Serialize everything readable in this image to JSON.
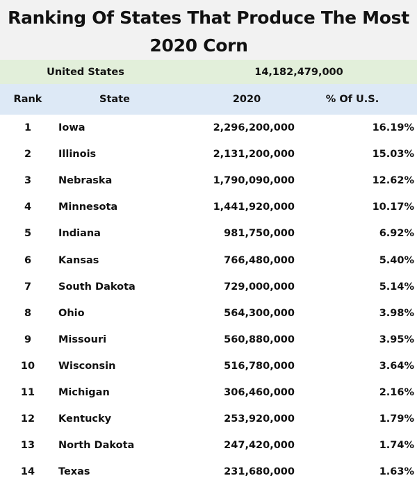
{
  "title": {
    "line1": "Ranking Of States That Produce The Most",
    "line2": "2020 Corn"
  },
  "summary": {
    "label": "United States",
    "total": "14,182,479,000"
  },
  "columns": [
    "Rank",
    "State",
    "2020",
    "% Of U.S."
  ],
  "rows": [
    {
      "rank": "1",
      "state": "Iowa",
      "value": "2,296,200,000",
      "pct": "16.19%"
    },
    {
      "rank": "2",
      "state": "Illinois",
      "value": "2,131,200,000",
      "pct": "15.03%"
    },
    {
      "rank": "3",
      "state": "Nebraska",
      "value": "1,790,090,000",
      "pct": "12.62%"
    },
    {
      "rank": "4",
      "state": "Minnesota",
      "value": "1,441,920,000",
      "pct": "10.17%"
    },
    {
      "rank": "5",
      "state": "Indiana",
      "value": "981,750,000",
      "pct": "6.92%"
    },
    {
      "rank": "6",
      "state": "Kansas",
      "value": "766,480,000",
      "pct": "5.40%"
    },
    {
      "rank": "7",
      "state": "South Dakota",
      "value": "729,000,000",
      "pct": "5.14%"
    },
    {
      "rank": "8",
      "state": "Ohio",
      "value": "564,300,000",
      "pct": "3.98%"
    },
    {
      "rank": "9",
      "state": "Missouri",
      "value": "560,880,000",
      "pct": "3.95%"
    },
    {
      "rank": "10",
      "state": "Wisconsin",
      "value": "516,780,000",
      "pct": "3.64%"
    },
    {
      "rank": "11",
      "state": "Michigan",
      "value": "306,460,000",
      "pct": "2.16%"
    },
    {
      "rank": "12",
      "state": "Kentucky",
      "value": "253,920,000",
      "pct": "1.79%"
    },
    {
      "rank": "13",
      "state": "North Dakota",
      "value": "247,420,000",
      "pct": "1.74%"
    },
    {
      "rank": "14",
      "state": "Texas",
      "value": "231,680,000",
      "pct": "1.63%"
    }
  ],
  "colors": {
    "title_bg": "#f2f2f2",
    "summary_bg": "#e2efda",
    "header_bg": "#dde9f6",
    "text": "#111111"
  },
  "chart_data": {
    "type": "table",
    "title": "Ranking Of States That Produce The Most 2020 Corn",
    "columns": [
      "Rank",
      "State",
      "2020",
      "% Of U.S."
    ],
    "total_label": "United States",
    "total_value": 14182479000,
    "categories": [
      "Iowa",
      "Illinois",
      "Nebraska",
      "Minnesota",
      "Indiana",
      "Kansas",
      "South Dakota",
      "Ohio",
      "Missouri",
      "Wisconsin",
      "Michigan",
      "Kentucky",
      "North Dakota",
      "Texas"
    ],
    "series": [
      {
        "name": "2020",
        "values": [
          2296200000,
          2131200000,
          1790090000,
          1441920000,
          981750000,
          766480000,
          729000000,
          564300000,
          560880000,
          516780000,
          306460000,
          253920000,
          247420000,
          231680000
        ]
      },
      {
        "name": "% Of U.S.",
        "values": [
          16.19,
          15.03,
          12.62,
          10.17,
          6.92,
          5.4,
          5.14,
          3.98,
          3.95,
          3.64,
          2.16,
          1.79,
          1.74,
          1.63
        ]
      }
    ]
  }
}
